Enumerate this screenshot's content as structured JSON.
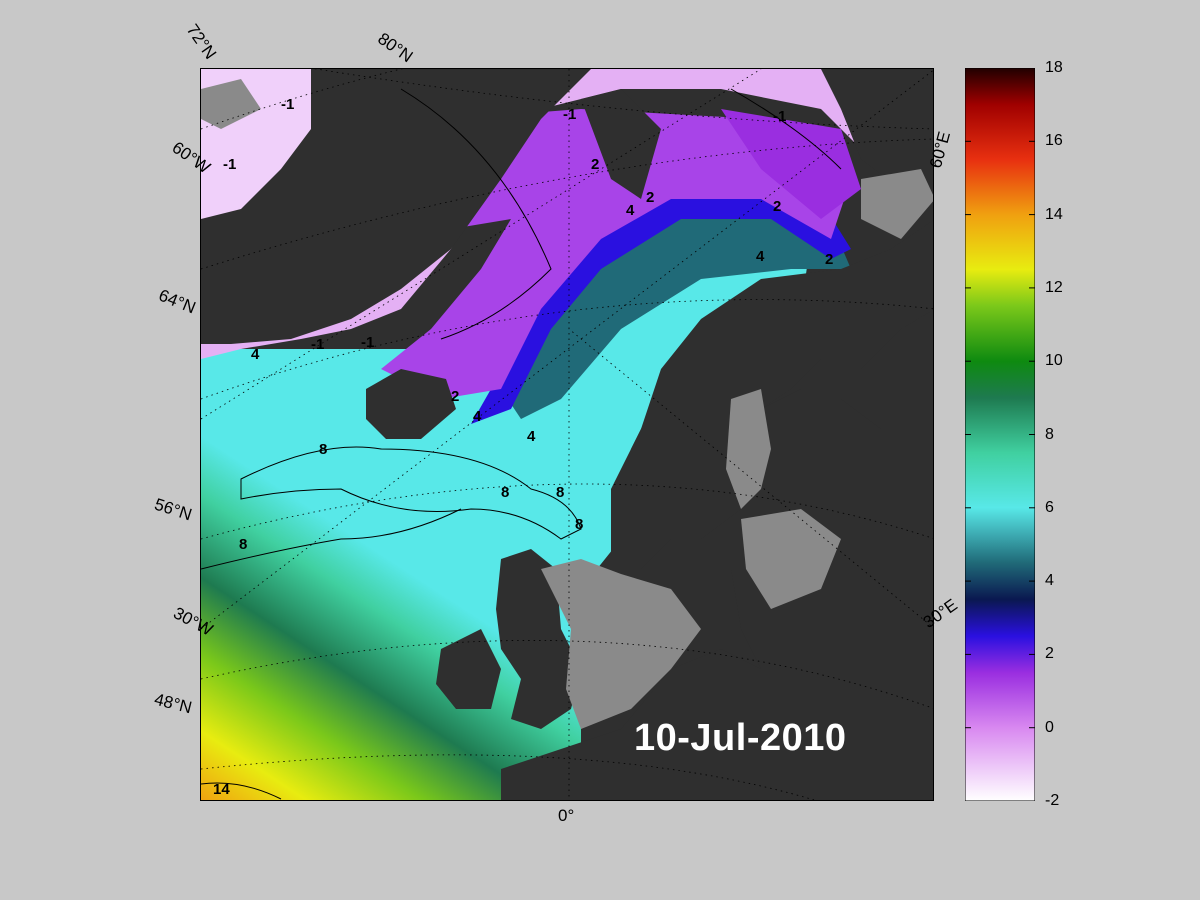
{
  "date": "10-Jul-2010",
  "edge_labels": {
    "lat72": "72°N",
    "lat80": "80°N",
    "lon60w": "60°W",
    "lat64": "64°N",
    "lat56": "56°N",
    "lon30w": "30°W",
    "lat48": "48°N",
    "lon0": "0°",
    "lon30e": "30°E",
    "lon60e": "60°E"
  },
  "contour_labels": [
    "-1",
    "-1",
    "-1",
    "-1",
    "-1",
    "-1",
    "2",
    "2",
    "2",
    "2",
    "2",
    "4",
    "4",
    "4",
    "4",
    "4",
    "8",
    "8",
    "8",
    "8",
    "8",
    "14"
  ],
  "colorbar": {
    "ticks": [
      "18",
      "16",
      "14",
      "12",
      "10",
      "8",
      "6",
      "4",
      "2",
      "0",
      "-2"
    ],
    "min": -2,
    "max": 18,
    "stops": [
      {
        "v": -2,
        "c": "#ffffff"
      },
      {
        "v": 0,
        "c": "#d888f0"
      },
      {
        "v": 1.5,
        "c": "#9a2ee0"
      },
      {
        "v": 2.5,
        "c": "#2a10e0"
      },
      {
        "v": 3.5,
        "c": "#0a1850"
      },
      {
        "v": 4.5,
        "c": "#206a78"
      },
      {
        "v": 6,
        "c": "#58e8e8"
      },
      {
        "v": 7.5,
        "c": "#40d0a0"
      },
      {
        "v": 9,
        "c": "#1e7a50"
      },
      {
        "v": 10,
        "c": "#0e8a10"
      },
      {
        "v": 11.5,
        "c": "#7ac81a"
      },
      {
        "v": 12.5,
        "c": "#e8ec10"
      },
      {
        "v": 14,
        "c": "#f0a010"
      },
      {
        "v": 15.5,
        "c": "#e83010"
      },
      {
        "v": 17,
        "c": "#a00000"
      },
      {
        "v": 18,
        "c": "#200000"
      }
    ]
  },
  "colors": {
    "land": "#2f2f2f",
    "ice_mask": "#8a8a8a",
    "background": "#c8c8c8"
  }
}
